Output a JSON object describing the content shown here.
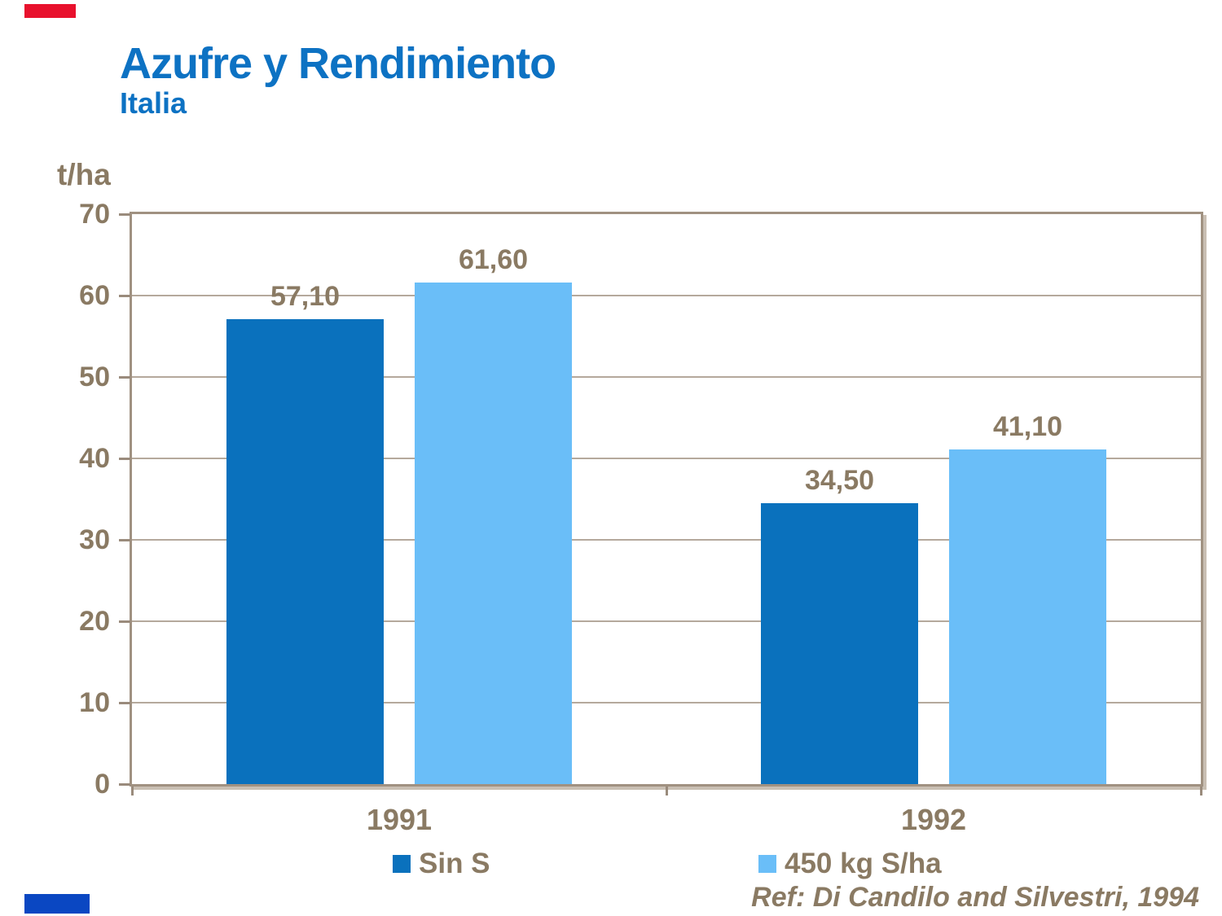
{
  "slide": {
    "title": "Azufre y Rendimiento",
    "subtitle": "Italia",
    "reference": "Ref: Di Candilo and Silvestri, 1994",
    "accents": {
      "top_left_color": "#e8112d",
      "bottom_left_color": "#0a47c2"
    }
  },
  "colors": {
    "title_blue": "#0d72c3",
    "label_brown": "#8a7a63",
    "axis_border": "#a09181",
    "gridline": "#b5a99c",
    "series_dark_blue": "#0a71bd",
    "series_light_blue": "#6abef8"
  },
  "chart_data": {
    "type": "bar",
    "title": "Azufre y Rendimiento",
    "subtitle": "Italia",
    "unit_label": "t/ha",
    "categories": [
      "1991",
      "1992"
    ],
    "series": [
      {
        "name": "Sin S",
        "color": "#0a71bd",
        "values": [
          57.1,
          34.5
        ],
        "value_labels": [
          "57,10",
          "34,50"
        ]
      },
      {
        "name": "450 kg S/ha",
        "color": "#6abef8",
        "values": [
          61.6,
          41.1
        ],
        "value_labels": [
          "61,60",
          "41,10"
        ]
      }
    ],
    "ylim": [
      0,
      70
    ],
    "yticks": [
      0,
      10,
      20,
      30,
      40,
      50,
      60,
      70
    ],
    "grid": true,
    "legend_position": "bottom",
    "annotation": "Ref: Di Candilo and Silvestri, 1994"
  }
}
